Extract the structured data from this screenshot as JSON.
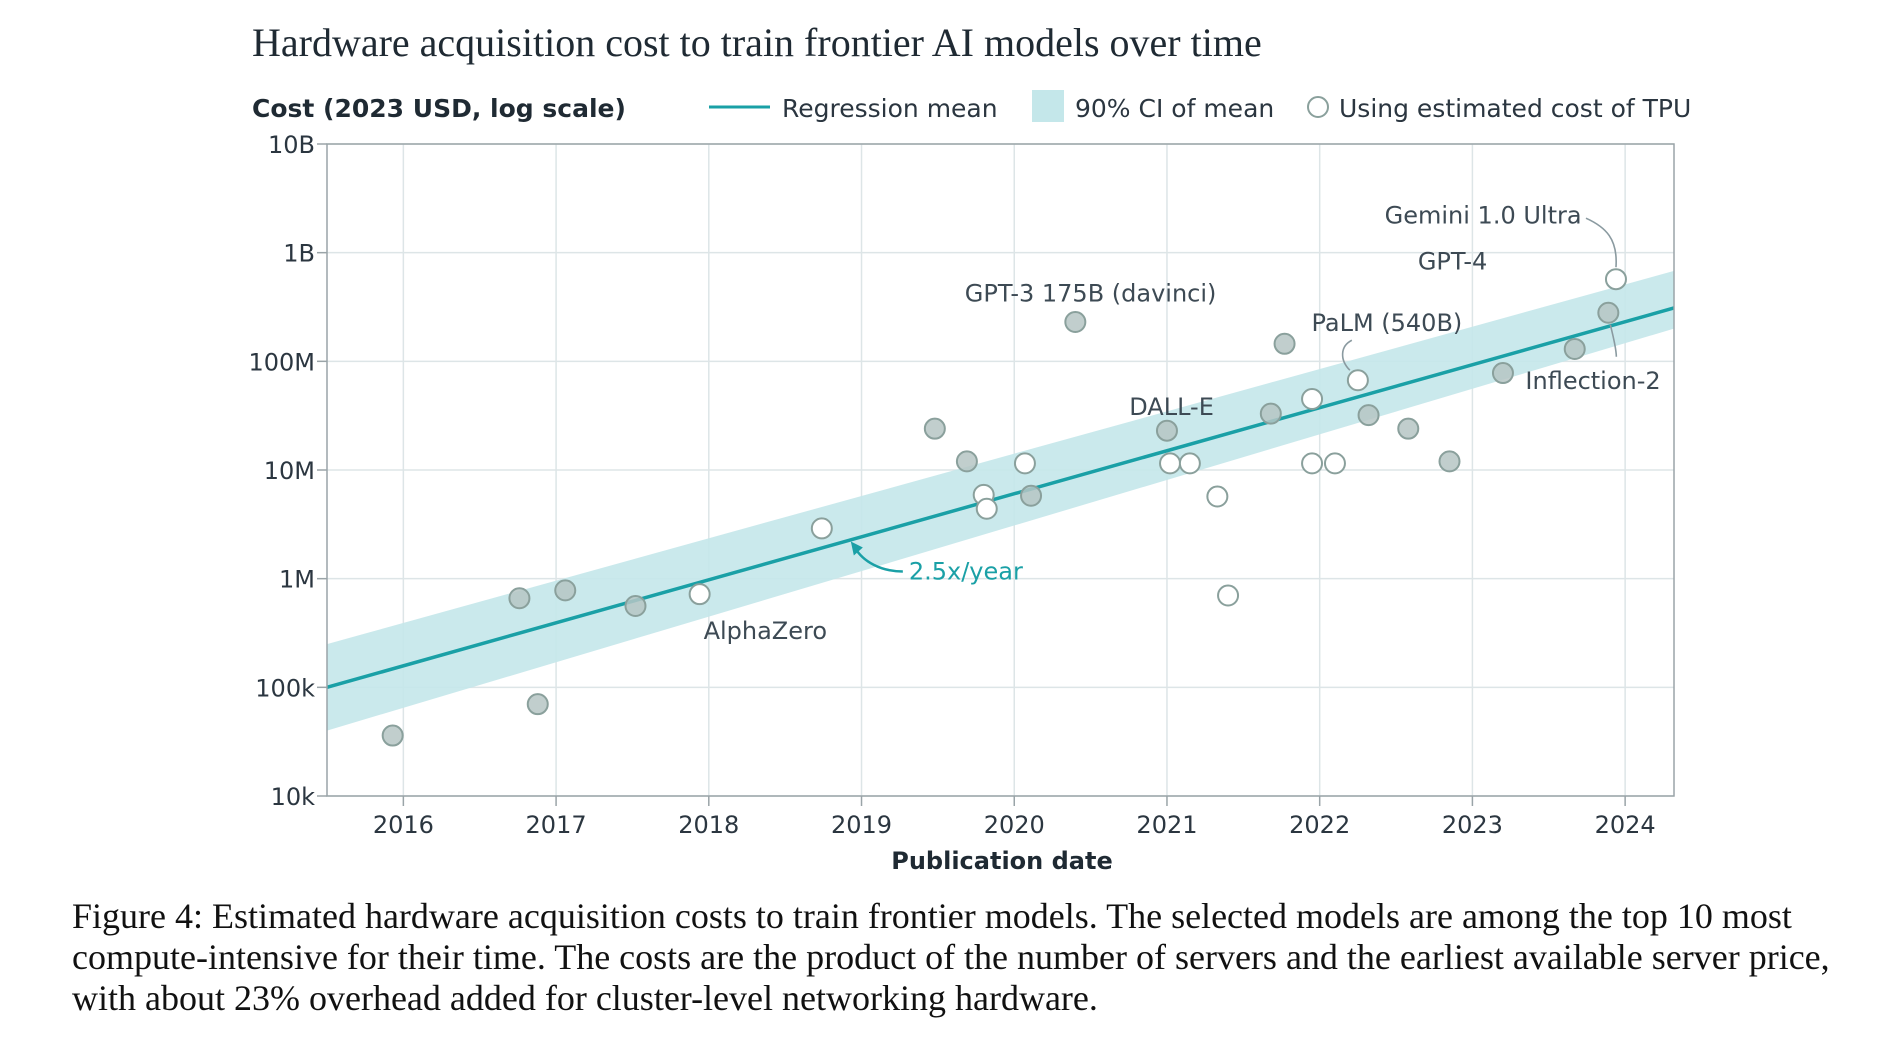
{
  "chart_data": {
    "type": "scatter",
    "title": "Hardware acquisition cost to train frontier AI models over time",
    "ylabel": "Cost (2023 USD, log scale)",
    "xlabel": "Publication date",
    "y_scale": "log",
    "ylim": [
      10000,
      10000000000
    ],
    "xlim": [
      2015.5,
      2024.32
    ],
    "grid": true,
    "legend_position": "top",
    "x_ticks": [
      2016,
      2017,
      2018,
      2019,
      2020,
      2021,
      2022,
      2023,
      2024
    ],
    "x_tick_labels": [
      "2016",
      "2017",
      "2018",
      "2019",
      "2020",
      "2021",
      "2022",
      "2023",
      "2024"
    ],
    "y_ticks": [
      10000,
      100000,
      1000000,
      10000000,
      100000000,
      1000000000,
      10000000000
    ],
    "y_tick_labels": [
      "10k",
      "100k",
      "1M",
      "10M",
      "100M",
      "1B",
      "10B"
    ],
    "legend": {
      "regression": "Regression mean",
      "ci": "90% CI of mean",
      "tpu": "Using estimated cost of TPU"
    },
    "regression": {
      "x": [
        2015.5,
        2024.32
      ],
      "y": [
        100000,
        310000000
      ],
      "ci_lower": [
        40000,
        200000000
      ],
      "ci_upper": [
        250000,
        680000000
      ],
      "growth_label": "2.5x/year"
    },
    "series": [
      {
        "name": "",
        "style": "filled",
        "points": [
          {
            "x": 2015.93,
            "y": 36000
          },
          {
            "x": 2016.76,
            "y": 660000
          },
          {
            "x": 2016.88,
            "y": 70000
          },
          {
            "x": 2017.06,
            "y": 780000
          },
          {
            "x": 2017.52,
            "y": 560000
          },
          {
            "x": 2019.48,
            "y": 24000000
          },
          {
            "x": 2019.69,
            "y": 12000000
          },
          {
            "x": 2020.11,
            "y": 5800000
          },
          {
            "x": 2020.4,
            "y": 230000000
          },
          {
            "x": 2021.0,
            "y": 23000000
          },
          {
            "x": 2021.68,
            "y": 33000000
          },
          {
            "x": 2021.77,
            "y": 145000000
          },
          {
            "x": 2022.32,
            "y": 32000000
          },
          {
            "x": 2022.58,
            "y": 24000000
          },
          {
            "x": 2022.85,
            "y": 12000000
          },
          {
            "x": 2023.2,
            "y": 78000000
          },
          {
            "x": 2023.67,
            "y": 130000000
          },
          {
            "x": 2023.89,
            "y": 280000000
          }
        ]
      },
      {
        "name": "Using estimated cost of TPU",
        "style": "hollow",
        "points": [
          {
            "x": 2017.94,
            "y": 720000
          },
          {
            "x": 2018.74,
            "y": 2900000
          },
          {
            "x": 2019.8,
            "y": 5900000
          },
          {
            "x": 2019.82,
            "y": 4400000
          },
          {
            "x": 2020.07,
            "y": 11500000
          },
          {
            "x": 2021.02,
            "y": 11500000
          },
          {
            "x": 2021.15,
            "y": 11500000
          },
          {
            "x": 2021.33,
            "y": 5700000
          },
          {
            "x": 2021.4,
            "y": 700000
          },
          {
            "x": 2021.95,
            "y": 45000000
          },
          {
            "x": 2021.95,
            "y": 11500000
          },
          {
            "x": 2022.1,
            "y": 11500000
          },
          {
            "x": 2022.25,
            "y": 67000000
          },
          {
            "x": 2023.94,
            "y": 570000000
          }
        ]
      }
    ],
    "annotations": [
      {
        "text": "AlphaZero",
        "x": 2018.37,
        "y": 330000
      },
      {
        "text": "GPT-3 175B (davinci)",
        "x": 2020.5,
        "y": 420000000
      },
      {
        "text": "DALL-E",
        "x": 2021.03,
        "y": 38000000
      },
      {
        "text": "PaLM (540B)",
        "x": 2022.44,
        "y": 225000000
      },
      {
        "text": "GPT-4",
        "x": 2022.87,
        "y": 830000000
      },
      {
        "text": "Gemini 1.0 Ultra",
        "x": 2023.07,
        "y": 2200000000
      },
      {
        "text": "Inflection-2",
        "x": 2023.79,
        "y": 66000000
      }
    ]
  },
  "caption": "Figure 4: Estimated hardware acquisition costs to train frontier models. The selected models are among the top 10 most compute-intensive for their time. The costs are the product of the number of servers and the earliest available server price, with about 23% overhead added for cluster-level networking hardware.",
  "colors": {
    "accent": "#1aa0a6",
    "ci_band": "#c4e7ea",
    "point_fill": "#b6c6c4",
    "point_stroke": "#8aa09c",
    "grid": "#dde5e7",
    "axis": "#9aa4a8",
    "text": "#1f2a33"
  }
}
